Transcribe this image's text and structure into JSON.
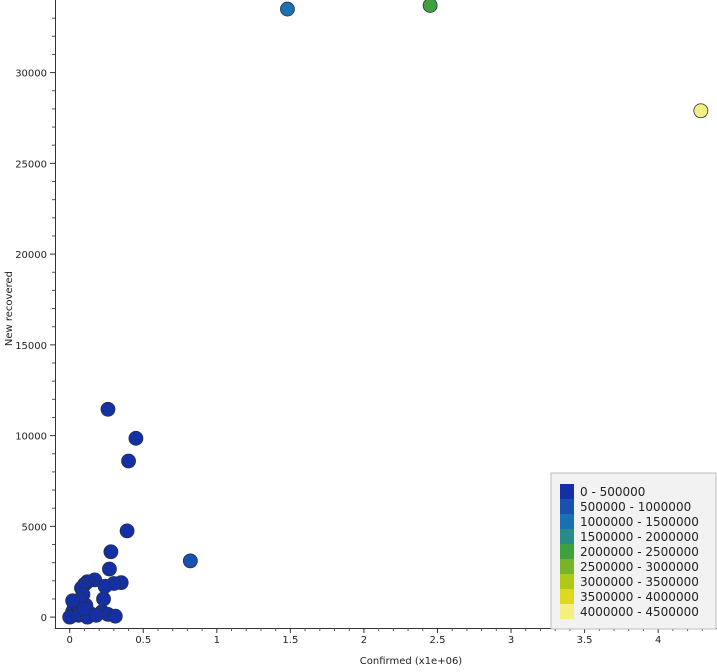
{
  "chart_data": {
    "type": "scatter",
    "xlabel": "Confirmed (x1e+06)",
    "ylabel": "New recovered",
    "xlim": [
      -0.1,
      4.4
    ],
    "ylim": [
      -600,
      34000
    ],
    "x_ticks": [
      0,
      0.5,
      1,
      1.5,
      2,
      2.5,
      3,
      3.5,
      4
    ],
    "x_tick_labels": [
      "0",
      "0.5",
      "1",
      "1.5",
      "2",
      "2.5",
      "3",
      "3.5",
      "4"
    ],
    "y_ticks": [
      0,
      5000,
      10000,
      15000,
      20000,
      25000,
      30000
    ],
    "y_tick_labels": [
      "0",
      "5000",
      "10000",
      "15000",
      "20000",
      "25000",
      "30000"
    ],
    "grid": false,
    "legend_position": "bottom-right",
    "legend": [
      {
        "label": "0 - 500000",
        "color": "#1530a6"
      },
      {
        "label": "500000 - 1000000",
        "color": "#1a50b0"
      },
      {
        "label": "1000000 - 1500000",
        "color": "#1a70b0"
      },
      {
        "label": "1500000 - 2000000",
        "color": "#2a8a88"
      },
      {
        "label": "2000000 - 2500000",
        "color": "#3fa040"
      },
      {
        "label": "2500000 - 3000000",
        "color": "#78b428"
      },
      {
        "label": "3000000 - 3500000",
        "color": "#b0c818"
      },
      {
        "label": "3500000 - 4000000",
        "color": "#e0d820"
      },
      {
        "label": "4000000 - 4500000",
        "color": "#f5ee80"
      }
    ],
    "points": [
      {
        "x": 4.29,
        "y": 27900,
        "bin": 8
      },
      {
        "x": 2.45,
        "y": 33700,
        "bin": 4
      },
      {
        "x": 1.48,
        "y": 33500,
        "bin": 2
      },
      {
        "x": 0.82,
        "y": 3100,
        "bin": 1
      },
      {
        "x": 0.26,
        "y": 11450,
        "bin": 0
      },
      {
        "x": 0.45,
        "y": 9850,
        "bin": 0
      },
      {
        "x": 0.4,
        "y": 8600,
        "bin": 0
      },
      {
        "x": 0.39,
        "y": 4750,
        "bin": 0
      },
      {
        "x": 0.28,
        "y": 3600,
        "bin": 0
      },
      {
        "x": 0.27,
        "y": 2650,
        "bin": 0
      },
      {
        "x": 0.35,
        "y": 1900,
        "bin": 0
      },
      {
        "x": 0.3,
        "y": 1850,
        "bin": 0
      },
      {
        "x": 0.17,
        "y": 2050,
        "bin": 0
      },
      {
        "x": 0.12,
        "y": 1950,
        "bin": 0
      },
      {
        "x": 0.1,
        "y": 1800,
        "bin": 0
      },
      {
        "x": 0.08,
        "y": 1600,
        "bin": 0
      },
      {
        "x": 0.24,
        "y": 1700,
        "bin": 0
      },
      {
        "x": 0.23,
        "y": 1000,
        "bin": 0
      },
      {
        "x": 0.09,
        "y": 1250,
        "bin": 0
      },
      {
        "x": 0.06,
        "y": 800,
        "bin": 0
      },
      {
        "x": 0.05,
        "y": 550,
        "bin": 0
      },
      {
        "x": 0.03,
        "y": 700,
        "bin": 0
      },
      {
        "x": 0.11,
        "y": 650,
        "bin": 0
      },
      {
        "x": 0.08,
        "y": 350,
        "bin": 0
      },
      {
        "x": 0.14,
        "y": 200,
        "bin": 0
      },
      {
        "x": 0.02,
        "y": 300,
        "bin": 0
      },
      {
        "x": 0.04,
        "y": 150,
        "bin": 0
      },
      {
        "x": 0.01,
        "y": 50,
        "bin": 0
      },
      {
        "x": 0.0,
        "y": 0,
        "bin": 0
      },
      {
        "x": 0.06,
        "y": 100,
        "bin": 0
      },
      {
        "x": 0.22,
        "y": 300,
        "bin": 0
      },
      {
        "x": 0.26,
        "y": 150,
        "bin": 0
      },
      {
        "x": 0.31,
        "y": 50,
        "bin": 0
      },
      {
        "x": 0.12,
        "y": 0,
        "bin": 0
      },
      {
        "x": 0.18,
        "y": 100,
        "bin": 0
      },
      {
        "x": 0.07,
        "y": 950,
        "bin": 0
      },
      {
        "x": 0.1,
        "y": 450,
        "bin": 0
      },
      {
        "x": 0.02,
        "y": 900,
        "bin": 0
      }
    ]
  }
}
